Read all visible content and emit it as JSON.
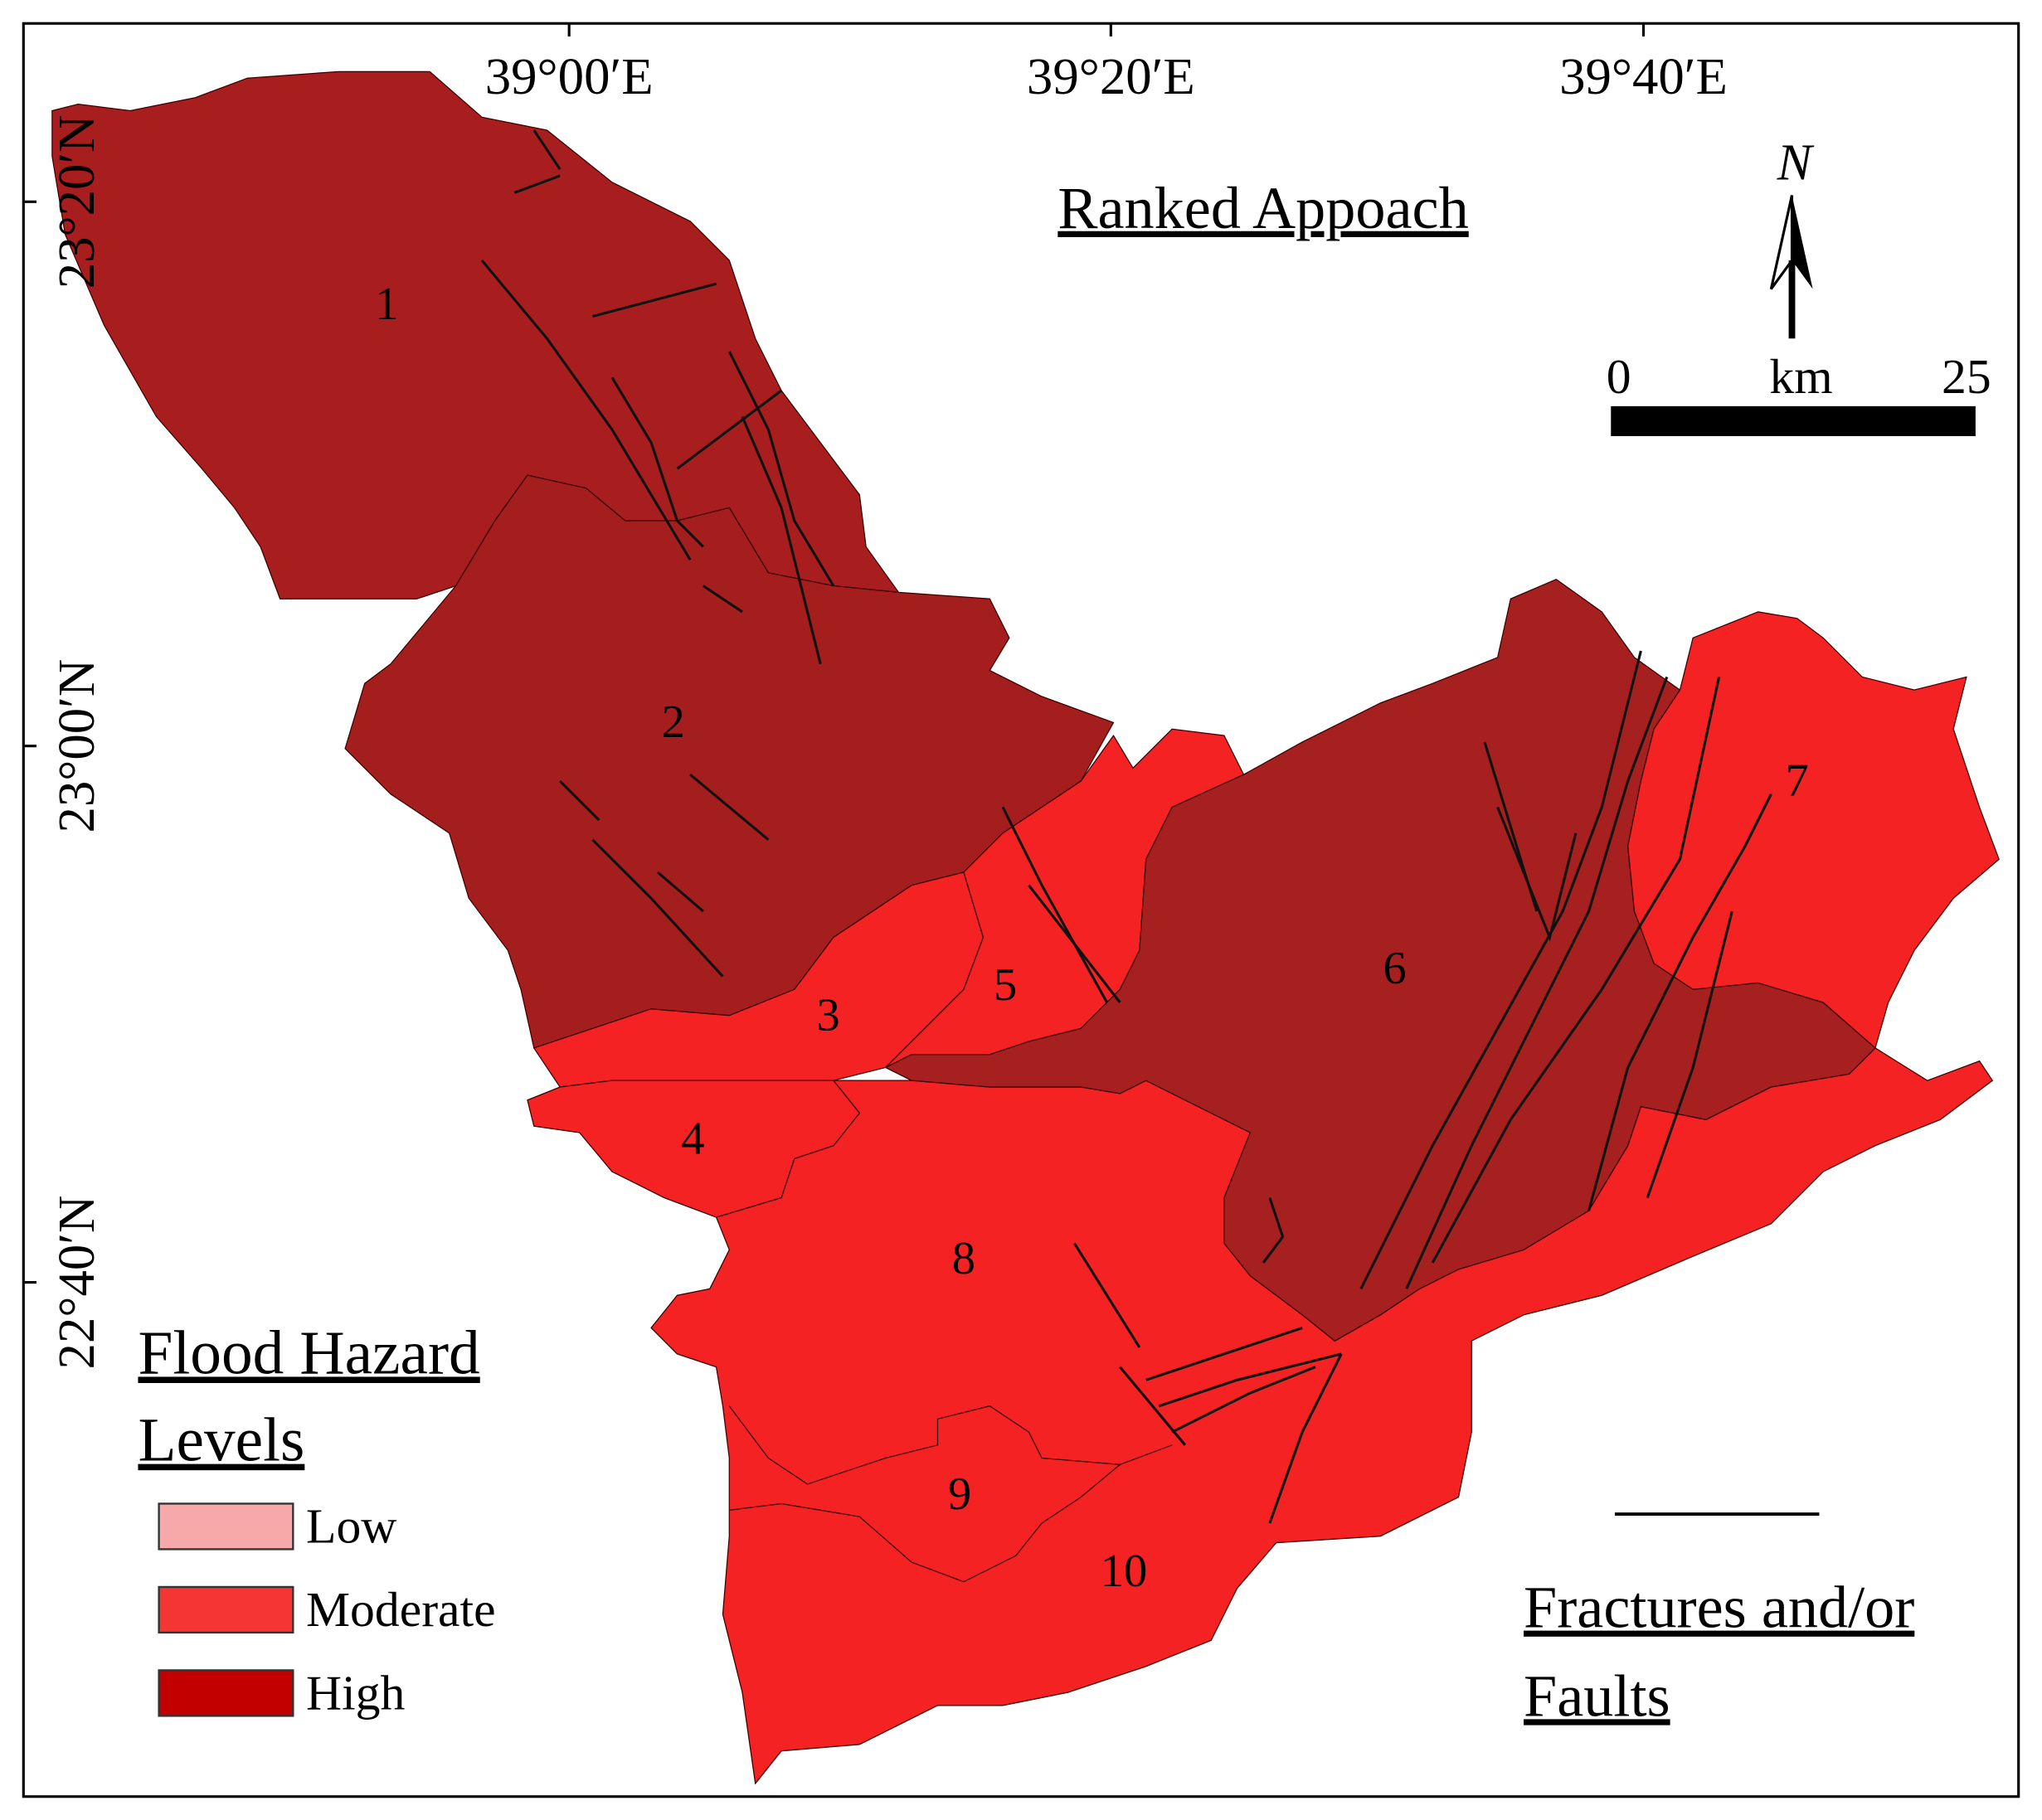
{
  "title": "Ranked Appoach",
  "longitude_labels": [
    "39°00′E",
    "39°20′E",
    "39°40′E"
  ],
  "latitude_labels": [
    "23°20′N",
    "23°00′N",
    "22°40′N"
  ],
  "north_arrow": "N",
  "scale_bar": {
    "start": "0",
    "unit": "km",
    "end": "25"
  },
  "basins": [
    {
      "label": "1",
      "color": "#a81e1e"
    },
    {
      "label": "2",
      "color": "#a41e1e"
    },
    {
      "label": "3",
      "color": "#f42222"
    },
    {
      "label": "4",
      "color": "#f42222"
    },
    {
      "label": "5",
      "color": "#f42222"
    },
    {
      "label": "6",
      "color": "#a62020"
    },
    {
      "label": "7",
      "color": "#f42222"
    },
    {
      "label": "8",
      "color": "#f42222"
    },
    {
      "label": "9",
      "color": "#f42222"
    },
    {
      "label": "10",
      "color": "#f42222"
    }
  ],
  "legend": {
    "title": "Flood Hazard",
    "subtitle": "Levels",
    "items": [
      {
        "label": "Low",
        "color": "#f7a9a9"
      },
      {
        "label": "Moderate",
        "color": "#f53434"
      },
      {
        "label": "High",
        "color": "#c20000"
      }
    ]
  },
  "fault_legend": {
    "line1": "Fractures and/or",
    "line2": "Faults"
  }
}
